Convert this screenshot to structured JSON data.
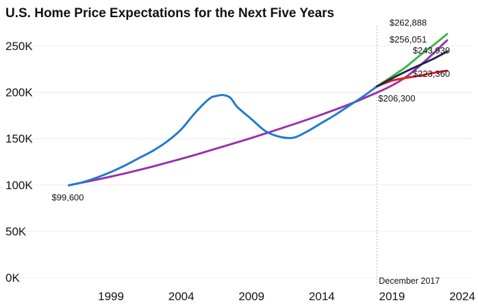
{
  "chart_data": {
    "type": "line",
    "title": "U.S. Home Price Expectations for the Next Five Years",
    "xlabel": "",
    "ylabel": "",
    "xlim": [
      1995,
      2024
    ],
    "ylim": [
      0,
      270000
    ],
    "grid": true,
    "xticks": [
      1999,
      2004,
      2009,
      2014,
      2019,
      2024
    ],
    "xtick_labels": [
      "1999",
      "2004",
      "2009",
      "2014",
      "2019",
      "2024"
    ],
    "yticks": [
      0,
      50000,
      100000,
      150000,
      200000,
      250000
    ],
    "ytick_labels": [
      "0K",
      "50K",
      "100K",
      "150K",
      "200K",
      "250K"
    ],
    "reference_line": {
      "x": 2017.92,
      "label": "December 2017"
    },
    "series": [
      {
        "color": "#1f7ad1",
        "x": [
          1996,
          1997,
          1998,
          1999,
          2000,
          2001,
          2002,
          2003,
          2004,
          2005,
          2006,
          2006.5,
          2007,
          2007.5,
          2008,
          2009,
          2010,
          2011,
          2012,
          2013,
          2014,
          2015,
          2016,
          2017,
          2017.92
        ],
        "y": [
          99600,
          103000,
          108000,
          114000,
          121000,
          129000,
          137000,
          147000,
          160000,
          178000,
          193000,
          196000,
          197000,
          194000,
          184000,
          171000,
          158000,
          152000,
          151000,
          158000,
          167000,
          176000,
          186000,
          196000,
          206300
        ]
      },
      {
        "color": "#9b2fb0",
        "x": [
          1996,
          1999,
          2002,
          2005,
          2008,
          2011,
          2014,
          2017,
          2020,
          2022.92
        ],
        "y": [
          99600,
          109000,
          120000,
          132500,
          146000,
          160500,
          176000,
          193500,
          216500,
          256051
        ]
      },
      {
        "color": "#3cb64a",
        "x": [
          2017.92,
          2019,
          2020,
          2021,
          2022,
          2022.92
        ],
        "y": [
          206300,
          217000,
          227500,
          240000,
          251500,
          262888
        ]
      },
      {
        "color": "#1c2a4a",
        "x": [
          2017.92,
          2019,
          2020,
          2021,
          2022,
          2022.92
        ],
        "y": [
          206300,
          215000,
          222500,
          229500,
          236500,
          243939
        ]
      },
      {
        "color": "#e01b1b",
        "x": [
          2017.92,
          2019,
          2020,
          2021,
          2022,
          2022.92
        ],
        "y": [
          206300,
          212500,
          215500,
          218000,
          221000,
          223360
        ]
      }
    ],
    "annotations": [
      {
        "text": "$99,600",
        "x": 1996,
        "y": 99600
      },
      {
        "text": "$206,300",
        "x": 2017.92,
        "y": 206300
      },
      {
        "text": "$262,888",
        "x": 2022.92,
        "y": 262888
      },
      {
        "text": "$256,051",
        "x": 2022.92,
        "y": 256051
      },
      {
        "text": "$243,939",
        "x": 2022.92,
        "y": 243939
      },
      {
        "text": "$223,360",
        "x": 2022.92,
        "y": 223360
      }
    ]
  }
}
